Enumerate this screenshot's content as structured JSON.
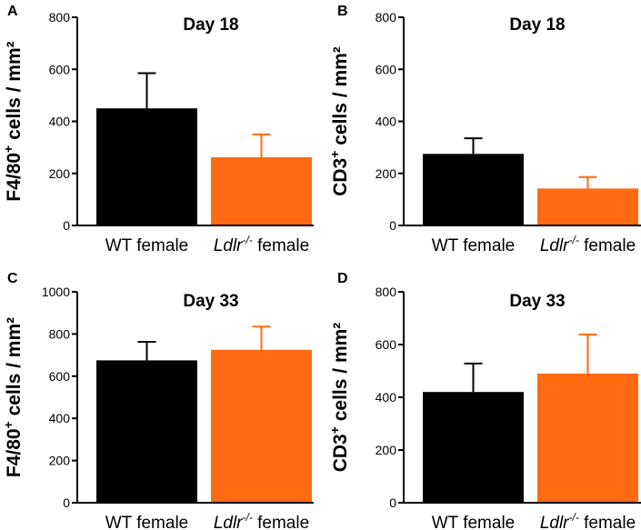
{
  "chart_data": [
    {
      "type": "bar",
      "panel": "A",
      "title": "Day 18",
      "ylabel": "F4/80⁺ cells / mm²",
      "ylabel_parts": {
        "pre": "F4/80",
        "sup": "+",
        "post": " cells / mm²"
      },
      "xlabel": "",
      "ylim": [
        0,
        800
      ],
      "yticks": [
        0,
        200,
        400,
        600,
        800
      ],
      "categories": [
        "WT female",
        "Ldlr-/- female"
      ],
      "category_parts": [
        {
          "pre": "WT female",
          "sup": "",
          "post": "",
          "italic": false
        },
        {
          "pre": "Ldlr",
          "sup": "-/-",
          "post": " female",
          "italic": true
        }
      ],
      "values": [
        450,
        262
      ],
      "errors": [
        135,
        88
      ],
      "colors": [
        "#000000",
        "#ff6a13"
      ]
    },
    {
      "type": "bar",
      "panel": "B",
      "title": "Day 18",
      "ylabel": "CD3⁺ cells / mm²",
      "ylabel_parts": {
        "pre": "CD3",
        "sup": "+",
        "post": " cells / mm²"
      },
      "xlabel": "",
      "ylim": [
        0,
        800
      ],
      "yticks": [
        0,
        200,
        400,
        600,
        800
      ],
      "categories": [
        "WT female",
        "Ldlr-/- female"
      ],
      "category_parts": [
        {
          "pre": "WT female",
          "sup": "",
          "post": "",
          "italic": false
        },
        {
          "pre": "Ldlr",
          "sup": "-/-",
          "post": " female",
          "italic": true
        }
      ],
      "values": [
        275,
        142
      ],
      "errors": [
        60,
        44
      ],
      "colors": [
        "#000000",
        "#ff6a13"
      ]
    },
    {
      "type": "bar",
      "panel": "C",
      "title": "Day 33",
      "ylabel": "F4/80⁺ cells / mm²",
      "ylabel_parts": {
        "pre": "F4/80",
        "sup": "+",
        "post": " cells / mm²"
      },
      "xlabel": "",
      "ylim": [
        0,
        1000
      ],
      "yticks": [
        0,
        200,
        400,
        600,
        800,
        1000
      ],
      "categories": [
        "WT female",
        "Ldlr-/- female"
      ],
      "category_parts": [
        {
          "pre": "WT female",
          "sup": "",
          "post": "",
          "italic": false
        },
        {
          "pre": "Ldlr",
          "sup": "-/-",
          "post": " female",
          "italic": true
        }
      ],
      "values": [
        675,
        725
      ],
      "errors": [
        88,
        110
      ],
      "colors": [
        "#000000",
        "#ff6a13"
      ]
    },
    {
      "type": "bar",
      "panel": "D",
      "title": "Day 33",
      "ylabel": "CD3⁺ cells / mm²",
      "ylabel_parts": {
        "pre": "CD3",
        "sup": "+",
        "post": " cells / mm²"
      },
      "xlabel": "",
      "ylim": [
        0,
        800
      ],
      "yticks": [
        0,
        200,
        400,
        600,
        800
      ],
      "categories": [
        "WT female",
        "Ldlr-/- female"
      ],
      "category_parts": [
        {
          "pre": "WT female",
          "sup": "",
          "post": "",
          "italic": false
        },
        {
          "pre": "Ldlr",
          "sup": "-/-",
          "post": " female",
          "italic": true
        }
      ],
      "values": [
        420,
        490
      ],
      "errors": [
        108,
        148
      ],
      "colors": [
        "#000000",
        "#ff6a13"
      ]
    }
  ]
}
